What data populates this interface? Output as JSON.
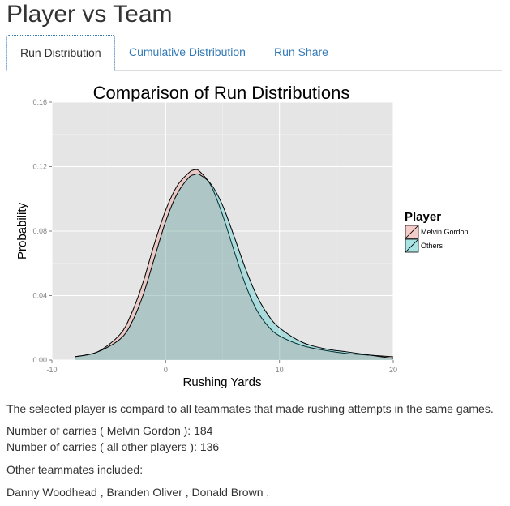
{
  "page": {
    "title": "Player vs Team"
  },
  "tabs": [
    {
      "label": "Run Distribution",
      "active": true
    },
    {
      "label": "Cumulative Distribution",
      "active": false
    },
    {
      "label": "Run Share",
      "active": false
    }
  ],
  "chart_data": {
    "type": "area",
    "title": "Comparison of Run Distributions",
    "xlabel": "Rushing Yards",
    "ylabel": "Probability",
    "xlim": [
      -10,
      20
    ],
    "ylim": [
      0,
      0.16
    ],
    "x_ticks": [
      -10,
      0,
      10,
      20
    ],
    "y_ticks": [
      "0.00",
      "0.04",
      "0.08",
      "0.12",
      "0.16"
    ],
    "grid": true,
    "legend": {
      "title": "Player",
      "placement": "right"
    },
    "series": [
      {
        "name": "Melvin Gordon",
        "color": "#F8766D",
        "x": [
          -8,
          -6,
          -4,
          -3,
          -2,
          -1,
          0,
          1,
          2,
          2.5,
          3,
          4,
          5,
          6,
          7,
          8,
          9,
          10,
          12,
          14,
          16,
          18,
          20
        ],
        "y": [
          0.002,
          0.005,
          0.016,
          0.029,
          0.048,
          0.072,
          0.093,
          0.108,
          0.116,
          0.118,
          0.117,
          0.108,
          0.09,
          0.068,
          0.047,
          0.031,
          0.021,
          0.015,
          0.009,
          0.006,
          0.004,
          0.003,
          0.002
        ]
      },
      {
        "name": "Others",
        "color": "#00BFC4",
        "x": [
          -8,
          -6,
          -4,
          -3,
          -2,
          -1,
          0,
          1,
          2,
          2.5,
          3,
          4,
          5,
          6,
          7,
          8,
          9,
          10,
          12,
          14,
          16,
          18,
          20
        ],
        "y": [
          0.002,
          0.005,
          0.013,
          0.023,
          0.04,
          0.063,
          0.086,
          0.103,
          0.113,
          0.115,
          0.115,
          0.109,
          0.096,
          0.077,
          0.057,
          0.04,
          0.028,
          0.02,
          0.011,
          0.007,
          0.005,
          0.003,
          0.001
        ]
      }
    ]
  },
  "summary": {
    "description": "The selected player is compard to all teammates that made rushing attempts in the same games.",
    "carries_player": "Number of carries ( Melvin Gordon ): 184",
    "carries_others": "Number of carries ( all other players ): 136",
    "teammates_label": "Other teammates included:",
    "teammates_list": "Danny Woodhead , Branden Oliver , Donald Brown ,"
  }
}
